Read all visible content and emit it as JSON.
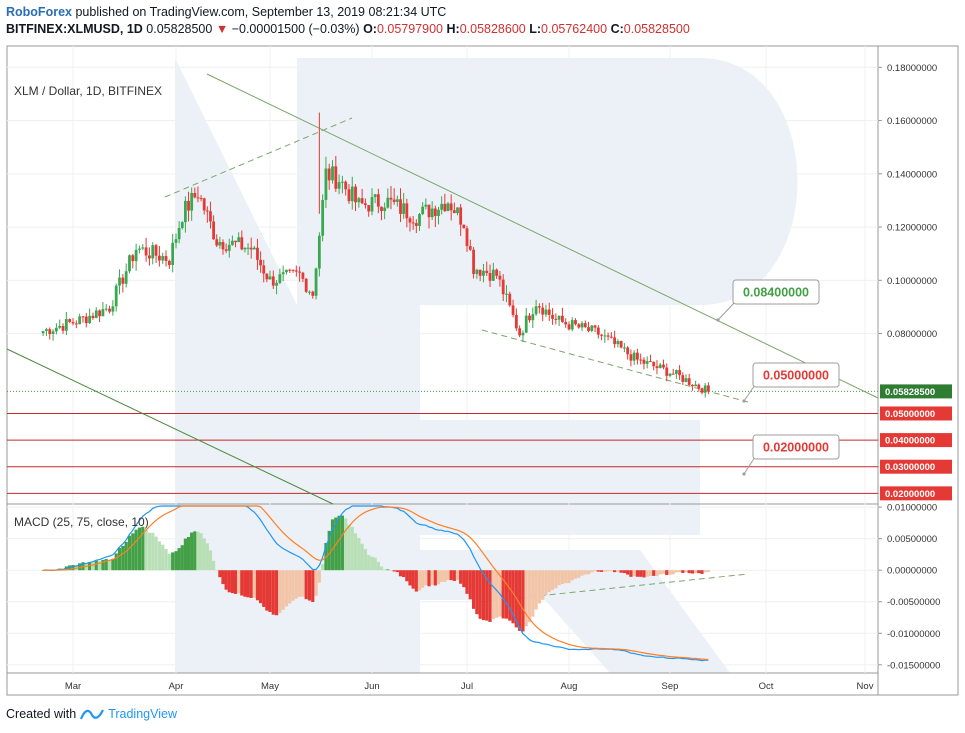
{
  "header": {
    "brand": "RoboForex",
    "published": "published on TradingView.com, September 13, 2019 08:21:34 UTC",
    "symbol": "BITFINEX:XLMUSD, 1D",
    "last": "0.05828500",
    "change_arrow": "▼",
    "change": "−0.00001500 (−0.03%)",
    "o_label": "O:",
    "o_value": "0.05797900",
    "h_label": "H:",
    "h_value": "0.05828600",
    "l_label": "L:",
    "l_value": "0.05762400",
    "c_label": "C:",
    "c_value": "0.05828500"
  },
  "footer": {
    "created_with": "Created with",
    "brand": "TradingView"
  },
  "colors": {
    "up": "#3aa853",
    "down": "#e53935",
    "trendline": "#7da66a",
    "hline": "#c62828",
    "label_green": "#43a047",
    "label_red": "#e53935",
    "macd": "#2196f3",
    "signal": "#ff7f24",
    "watermark": "#dde5f0"
  },
  "chart_data": [
    {
      "type": "candlestick",
      "title": "XLM / Dollar, 1D, BITFINEX",
      "x_labels": [
        "Mar",
        "Apr",
        "May",
        "Jun",
        "Jul",
        "Aug",
        "Sep",
        "Oct",
        "Nov"
      ],
      "y_ticks": [
        "0.18000000",
        "0.16000000",
        "0.14000000",
        "0.12000000",
        "0.10000000",
        "0.08000000"
      ],
      "ylim": [
        0.016,
        0.188
      ],
      "current_price": "0.05828500",
      "price_anchors": [
        {
          "date": "2019-02-20",
          "close": 0.081
        },
        {
          "date": "2019-03-03",
          "close": 0.085
        },
        {
          "date": "2019-03-12",
          "close": 0.09
        },
        {
          "date": "2019-03-20",
          "close": 0.112
        },
        {
          "date": "2019-03-30",
          "close": 0.108
        },
        {
          "date": "2019-04-03",
          "close": 0.125
        },
        {
          "date": "2019-04-08",
          "close": 0.133
        },
        {
          "date": "2019-04-14",
          "close": 0.115
        },
        {
          "date": "2019-04-25",
          "close": 0.112
        },
        {
          "date": "2019-05-01",
          "close": 0.1
        },
        {
          "date": "2019-05-10",
          "close": 0.102
        },
        {
          "date": "2019-05-14",
          "close": 0.095
        },
        {
          "date": "2019-05-18",
          "close": 0.14
        },
        {
          "date": "2019-05-22",
          "close": 0.138
        },
        {
          "date": "2019-05-28",
          "close": 0.128
        },
        {
          "date": "2019-06-05",
          "close": 0.13
        },
        {
          "date": "2019-06-15",
          "close": 0.124
        },
        {
          "date": "2019-06-25",
          "close": 0.13
        },
        {
          "date": "2019-06-30",
          "close": 0.122
        },
        {
          "date": "2019-07-03",
          "close": 0.105
        },
        {
          "date": "2019-07-10",
          "close": 0.102
        },
        {
          "date": "2019-07-17",
          "close": 0.08
        },
        {
          "date": "2019-07-22",
          "close": 0.092
        },
        {
          "date": "2019-07-28",
          "close": 0.085
        },
        {
          "date": "2019-08-10",
          "close": 0.08
        },
        {
          "date": "2019-08-22",
          "close": 0.07
        },
        {
          "date": "2019-09-02",
          "close": 0.065
        },
        {
          "date": "2019-09-13",
          "close": 0.0583
        }
      ],
      "price_lines": [
        {
          "value": 0.05,
          "label": "0.05000000"
        },
        {
          "value": 0.04,
          "label": "0.04000000"
        },
        {
          "value": 0.03,
          "label": "0.03000000"
        },
        {
          "value": 0.02,
          "label": "0.02000000"
        }
      ],
      "callouts": [
        {
          "label": "0.08400000",
          "color": "green"
        },
        {
          "label": "0.05000000",
          "color": "red"
        },
        {
          "label": "0.02000000",
          "color": "red"
        }
      ]
    },
    {
      "type": "macd",
      "title": "MACD (25, 75, close, 10)",
      "y_ticks": [
        "0.01000000",
        "0.00500000",
        "0.00000000",
        "-0.00500000",
        "-0.01000000",
        "-0.01500000"
      ],
      "ylim": [
        -0.0163,
        0.0105
      ]
    }
  ]
}
